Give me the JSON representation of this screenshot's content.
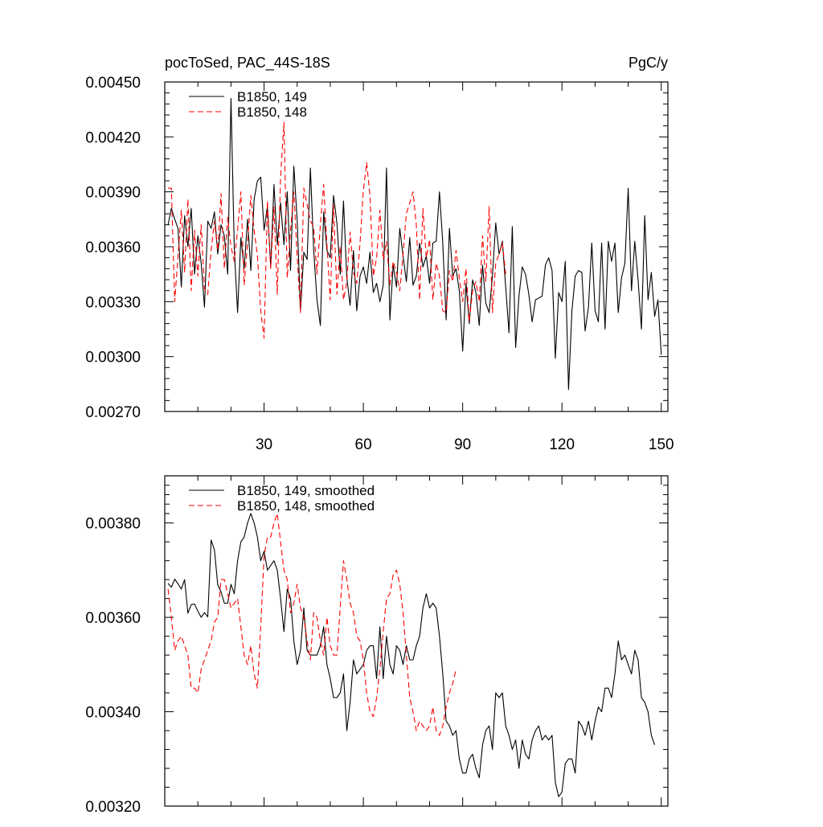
{
  "chart_data": [
    {
      "type": "line",
      "title": "pocToSed, PAC_44S-18S",
      "units": "PgC/y",
      "xlim": [
        0,
        152
      ],
      "ylim": [
        0.0027,
        0.0045
      ],
      "xticks": [
        30,
        60,
        90,
        120,
        150
      ],
      "xtick_labels": [
        "30",
        "60",
        "90",
        "120",
        "150"
      ],
      "yticks": [
        0.0027,
        0.003,
        0.0033,
        0.0036,
        0.0039,
        0.0042,
        0.0045
      ],
      "ytick_labels": [
        "0.00270",
        "0.00300",
        "0.00330",
        "0.00360",
        "0.00390",
        "0.00420",
        "0.00450"
      ],
      "legend": [
        "B1850, 149",
        "B1850, 148"
      ],
      "legend_position": "top-left",
      "series": [
        {
          "name": "B1850, 149",
          "color": "#000000",
          "dash": "solid",
          "x_start": 1,
          "values": [
            0.00372,
            0.00381,
            0.00375,
            0.0037,
            0.00338,
            0.00377,
            0.0036,
            0.00381,
            0.00345,
            0.00366,
            0.00351,
            0.00327,
            0.00374,
            0.0037,
            0.00379,
            0.00356,
            0.00372,
            0.00366,
            0.00345,
            0.00441,
            0.00359,
            0.00324,
            0.00365,
            0.00348,
            0.00375,
            0.00347,
            0.00386,
            0.00396,
            0.00398,
            0.00369,
            0.00382,
            0.00349,
            0.00394,
            0.00361,
            0.00384,
            0.00361,
            0.0039,
            0.00347,
            0.00404,
            0.00375,
            0.00325,
            0.00357,
            0.00353,
            0.00403,
            0.00358,
            0.00331,
            0.00317,
            0.00379,
            0.00358,
            0.00354,
            0.00388,
            0.00373,
            0.00345,
            0.00385,
            0.00343,
            0.00328,
            0.00358,
            0.00325,
            0.00344,
            0.00349,
            0.0034,
            0.00357,
            0.00335,
            0.0034,
            0.0033,
            0.00339,
            0.00403,
            0.0032,
            0.0035,
            0.00338,
            0.0037,
            0.00355,
            0.00341,
            0.00365,
            0.00339,
            0.00344,
            0.00362,
            0.00349,
            0.00355,
            0.0034,
            0.00362,
            0.00363,
            0.0039,
            0.00362,
            0.0032,
            0.0037,
            0.00344,
            0.00348,
            0.00336,
            0.00303,
            0.0034,
            0.00318,
            0.00342,
            0.00335,
            0.00317,
            0.0035,
            0.00329,
            0.00324,
            0.00344,
            0.00373,
            0.00356,
            0.00363,
            0.00338,
            0.00313,
            0.00371,
            0.00305,
            0.00333,
            0.00349,
            0.00345,
            0.00334,
            0.00319,
            0.00331,
            0.00332,
            0.00333,
            0.0035,
            0.00354,
            0.00347,
            0.00299,
            0.00335,
            0.0033,
            0.00352,
            0.00282,
            0.00325,
            0.00344,
            0.00347,
            0.00346,
            0.00314,
            0.00327,
            0.00362,
            0.00325,
            0.00319,
            0.00362,
            0.00315,
            0.00363,
            0.00352,
            0.00362,
            0.00324,
            0.00343,
            0.00351,
            0.00392,
            0.00336,
            0.00363,
            0.00342,
            0.00315,
            0.00377,
            0.00331,
            0.00346,
            0.00322,
            0.00331,
            0.00301
          ]
        },
        {
          "name": "B1850, 148",
          "color": "#ff0000",
          "dash": "dashed",
          "x_start": 1,
          "values": [
            0.00392,
            0.00392,
            0.0033,
            0.00355,
            0.0038,
            0.00346,
            0.00386,
            0.00336,
            0.00369,
            0.00344,
            0.00372,
            0.00337,
            0.00334,
            0.00358,
            0.00374,
            0.00358,
            0.00389,
            0.00348,
            0.00376,
            0.0036,
            0.00352,
            0.00369,
            0.0039,
            0.00339,
            0.00362,
            0.00388,
            0.00369,
            0.00355,
            0.00325,
            0.0031,
            0.00385,
            0.00348,
            0.00382,
            0.00334,
            0.00398,
            0.00428,
            0.00343,
            0.00369,
            0.0039,
            0.00355,
            0.00324,
            0.00392,
            0.00383,
            0.00374,
            0.00371,
            0.00345,
            0.00372,
            0.00394,
            0.00361,
            0.00331,
            0.00383,
            0.00334,
            0.0036,
            0.00331,
            0.00341,
            0.00368,
            0.00346,
            0.0034,
            0.00362,
            0.00391,
            0.00406,
            0.00388,
            0.00344,
            0.00354,
            0.0038,
            0.00353,
            0.00363,
            0.00339,
            0.00352,
            0.00346,
            0.00336,
            0.00356,
            0.00378,
            0.00384,
            0.0039,
            0.00372,
            0.00331,
            0.00381,
            0.00354,
            0.00364,
            0.00331,
            0.00351,
            0.00344,
            0.00325,
            0.00324,
            0.00347,
            0.00341,
            0.00358,
            0.00343,
            0.0033,
            0.00348,
            0.00319,
            0.00336,
            0.00341,
            0.0033,
            0.00366,
            0.00341,
            0.00382,
            0.00324,
            0.00351,
            0.00356,
            0.00362,
            0.00345
          ]
        }
      ]
    },
    {
      "type": "line",
      "title": "",
      "units": "",
      "xlim": [
        0,
        152
      ],
      "ylim": [
        0.0032,
        0.0039
      ],
      "xticks": [
        30,
        60,
        90,
        120,
        150
      ],
      "xtick_labels": [],
      "yticks": [
        0.0032,
        0.0034,
        0.0036,
        0.0038
      ],
      "ytick_labels": [
        "0.00320",
        "0.00340",
        "0.00360",
        "0.00380"
      ],
      "legend": [
        "B1850, 149, smoothed",
        "B1850, 148, smoothed"
      ],
      "legend_position": "top-left",
      "series": [
        {
          "name": "B1850, 149, smoothed",
          "color": "#000000",
          "dash": "solid",
          "x_start": 1,
          "values": [
            0.003672,
            0.003664,
            0.003681,
            0.003671,
            0.00366,
            0.00368,
            0.003609,
            0.003627,
            0.003628,
            0.003613,
            0.0036,
            0.00361,
            0.003601,
            0.003764,
            0.003743,
            0.003669,
            0.003654,
            0.00363,
            0.00363,
            0.00367,
            0.00365,
            0.00372,
            0.00376,
            0.00377,
            0.0038,
            0.00382,
            0.0038,
            0.00377,
            0.00372,
            0.00374,
            0.0037,
            0.00371,
            0.00372,
            0.0037,
            0.00364,
            0.00357,
            0.00366,
            0.00364,
            0.00355,
            0.0035,
            0.00353,
            0.00362,
            0.00353,
            0.00352,
            0.00352,
            0.00352,
            0.00354,
            0.00358,
            0.0035,
            0.00347,
            0.00343,
            0.00343,
            0.00344,
            0.00348,
            0.00336,
            0.00342,
            0.00351,
            0.00348,
            0.00349,
            0.0035,
            0.00353,
            0.00354,
            0.00354,
            0.00347,
            0.00358,
            0.00347,
            0.00356,
            0.0035,
            0.00348,
            0.00354,
            0.00353,
            0.0035,
            0.00354,
            0.00351,
            0.00351,
            0.00354,
            0.00356,
            0.00362,
            0.00365,
            0.00362,
            0.00363,
            0.00362,
            0.00356,
            0.00348,
            0.00338,
            0.00337,
            0.00335,
            0.00336,
            0.0033,
            0.00327,
            0.00327,
            0.0033,
            0.00331,
            0.00328,
            0.00326,
            0.00333,
            0.00336,
            0.00337,
            0.00332,
            0.00344,
            0.00343,
            0.00344,
            0.00337,
            0.00335,
            0.00332,
            0.00334,
            0.00328,
            0.00334,
            0.00331,
            0.0033,
            0.00334,
            0.00336,
            0.00337,
            0.00334,
            0.00335,
            0.00334,
            0.00335,
            0.00325,
            0.00322,
            0.00323,
            0.00329,
            0.0033,
            0.0033,
            0.00327,
            0.00338,
            0.00337,
            0.00335,
            0.00338,
            0.00334,
            0.00338,
            0.00341,
            0.0034,
            0.00345,
            0.00345,
            0.00343,
            0.00348,
            0.00355,
            0.00351,
            0.00352,
            0.0035,
            0.00348,
            0.00353,
            0.00351,
            0.00343,
            0.00342,
            0.0034,
            0.00335,
            0.00333
          ]
        },
        {
          "name": "B1850, 148, smoothed",
          "color": "#ff0000",
          "dash": "dashed",
          "x_start": 1,
          "values": [
            0.00366,
            0.0036,
            0.00353,
            0.00355,
            0.00356,
            0.00354,
            0.00352,
            0.00345,
            0.00345,
            0.00344,
            0.00349,
            0.00351,
            0.00353,
            0.00355,
            0.00359,
            0.0036,
            0.00368,
            0.00368,
            0.00365,
            0.00362,
            0.00363,
            0.00364,
            0.00358,
            0.00352,
            0.0035,
            0.00354,
            0.00348,
            0.00345,
            0.00358,
            0.00373,
            0.00377,
            0.00377,
            0.0038,
            0.00382,
            0.00376,
            0.0037,
            0.00368,
            0.00361,
            0.00363,
            0.00367,
            0.00362,
            0.0036,
            0.00355,
            0.00351,
            0.00361,
            0.0036,
            0.00355,
            0.00352,
            0.0036,
            0.00354,
            0.00352,
            0.00352,
            0.00362,
            0.00372,
            0.00368,
            0.00363,
            0.00361,
            0.00356,
            0.00355,
            0.00351,
            0.00344,
            0.0034,
            0.00339,
            0.00343,
            0.00349,
            0.00357,
            0.00364,
            0.00365,
            0.00369,
            0.0037,
            0.00367,
            0.00361,
            0.00352,
            0.00343,
            0.0034,
            0.00336,
            0.00338,
            0.00337,
            0.00336,
            0.00337,
            0.00341,
            0.00336,
            0.00335,
            0.00337,
            0.00341,
            0.00344,
            0.00346,
            0.00349
          ]
        }
      ]
    }
  ]
}
